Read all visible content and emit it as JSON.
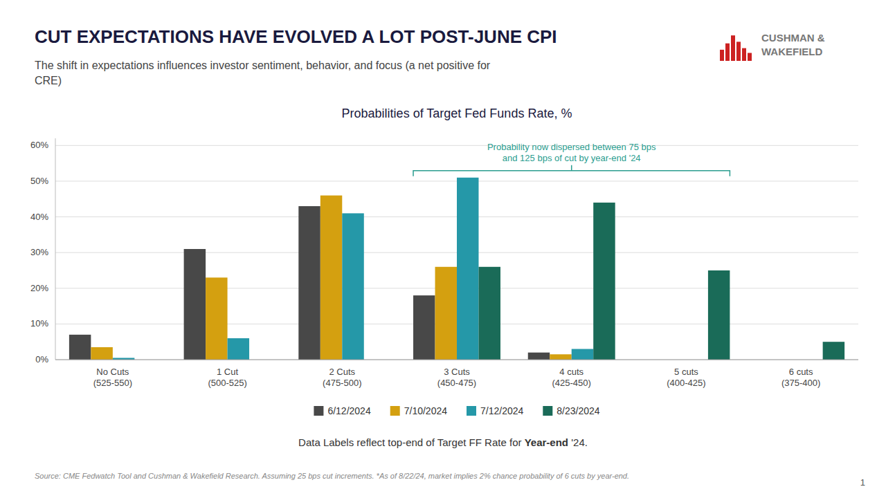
{
  "main_title": "CUT EXPECTATIONS HAVE EVOLVED A LOT POST-JUNE CPI",
  "subtitle": "The shift in expectations influences investor sentiment, behavior, and focus (a net positive for\nCRE)",
  "logo_text": "CUSHMAN &\nWAKEFIELD",
  "logo_color": "#cc2222",
  "note": {
    "text": "Data Labels reflect top-end of Target FF Rate for Year-end '24.",
    "bold": "Year-end"
  },
  "footnote": "Source: CME Fedwatch Tool and Cushman & Wakefield Research.  Assuming 25 bps cut increments.  *As of 8/22/24, market implies 2% chance probability of 6 cuts by year-end.",
  "page_number": "1",
  "chart_data": {
    "type": "bar",
    "title": "Probabilities of Target Fed Funds Rate, %",
    "categories": [
      "No Cuts\n(525-550)",
      "1 Cut\n(500-525)",
      "2 Cuts\n(475-500)",
      "3 Cuts\n(450-475)",
      "4 cuts\n(425-450)",
      "5 cuts\n(400-425)",
      "6 cuts\n(375-400)"
    ],
    "series": [
      {
        "name": "6/12/2024",
        "color": "#484848",
        "values": [
          7.0,
          31.0,
          43.0,
          18.0,
          2.0,
          0.0,
          0.0
        ]
      },
      {
        "name": "7/10/2024",
        "color": "#d4a010",
        "values": [
          3.5,
          23.0,
          46.0,
          26.0,
          1.5,
          0.0,
          0.0
        ]
      },
      {
        "name": "7/12/2024",
        "color": "#2598a8",
        "values": [
          0.5,
          6.0,
          41.0,
          51.0,
          3.0,
          0.0,
          0.0
        ]
      },
      {
        "name": "8/23/2024",
        "color": "#1a6b58",
        "values": [
          0.0,
          0.0,
          0.0,
          26.0,
          44.0,
          25.0,
          5.0
        ]
      }
    ],
    "ylim": [
      0,
      62
    ],
    "yticks": [
      {
        "value": 0,
        "label": "0%"
      },
      {
        "value": 10,
        "label": "10%"
      },
      {
        "value": 20,
        "label": "20%"
      },
      {
        "value": 30,
        "label": "30%"
      },
      {
        "value": 40,
        "label": "40%"
      },
      {
        "value": 50,
        "label": "50%"
      },
      {
        "value": 60,
        "label": "60%"
      }
    ],
    "grid": true,
    "legend": "bottom",
    "annotations": [
      {
        "text": "Probability now dispersed between 75 bps\nand 125 bps of cut by year-end '24",
        "color": "#2a9d8f",
        "span": [
          "3 Cuts\n(450-475)",
          "5 cuts\n(400-425)"
        ]
      }
    ]
  }
}
